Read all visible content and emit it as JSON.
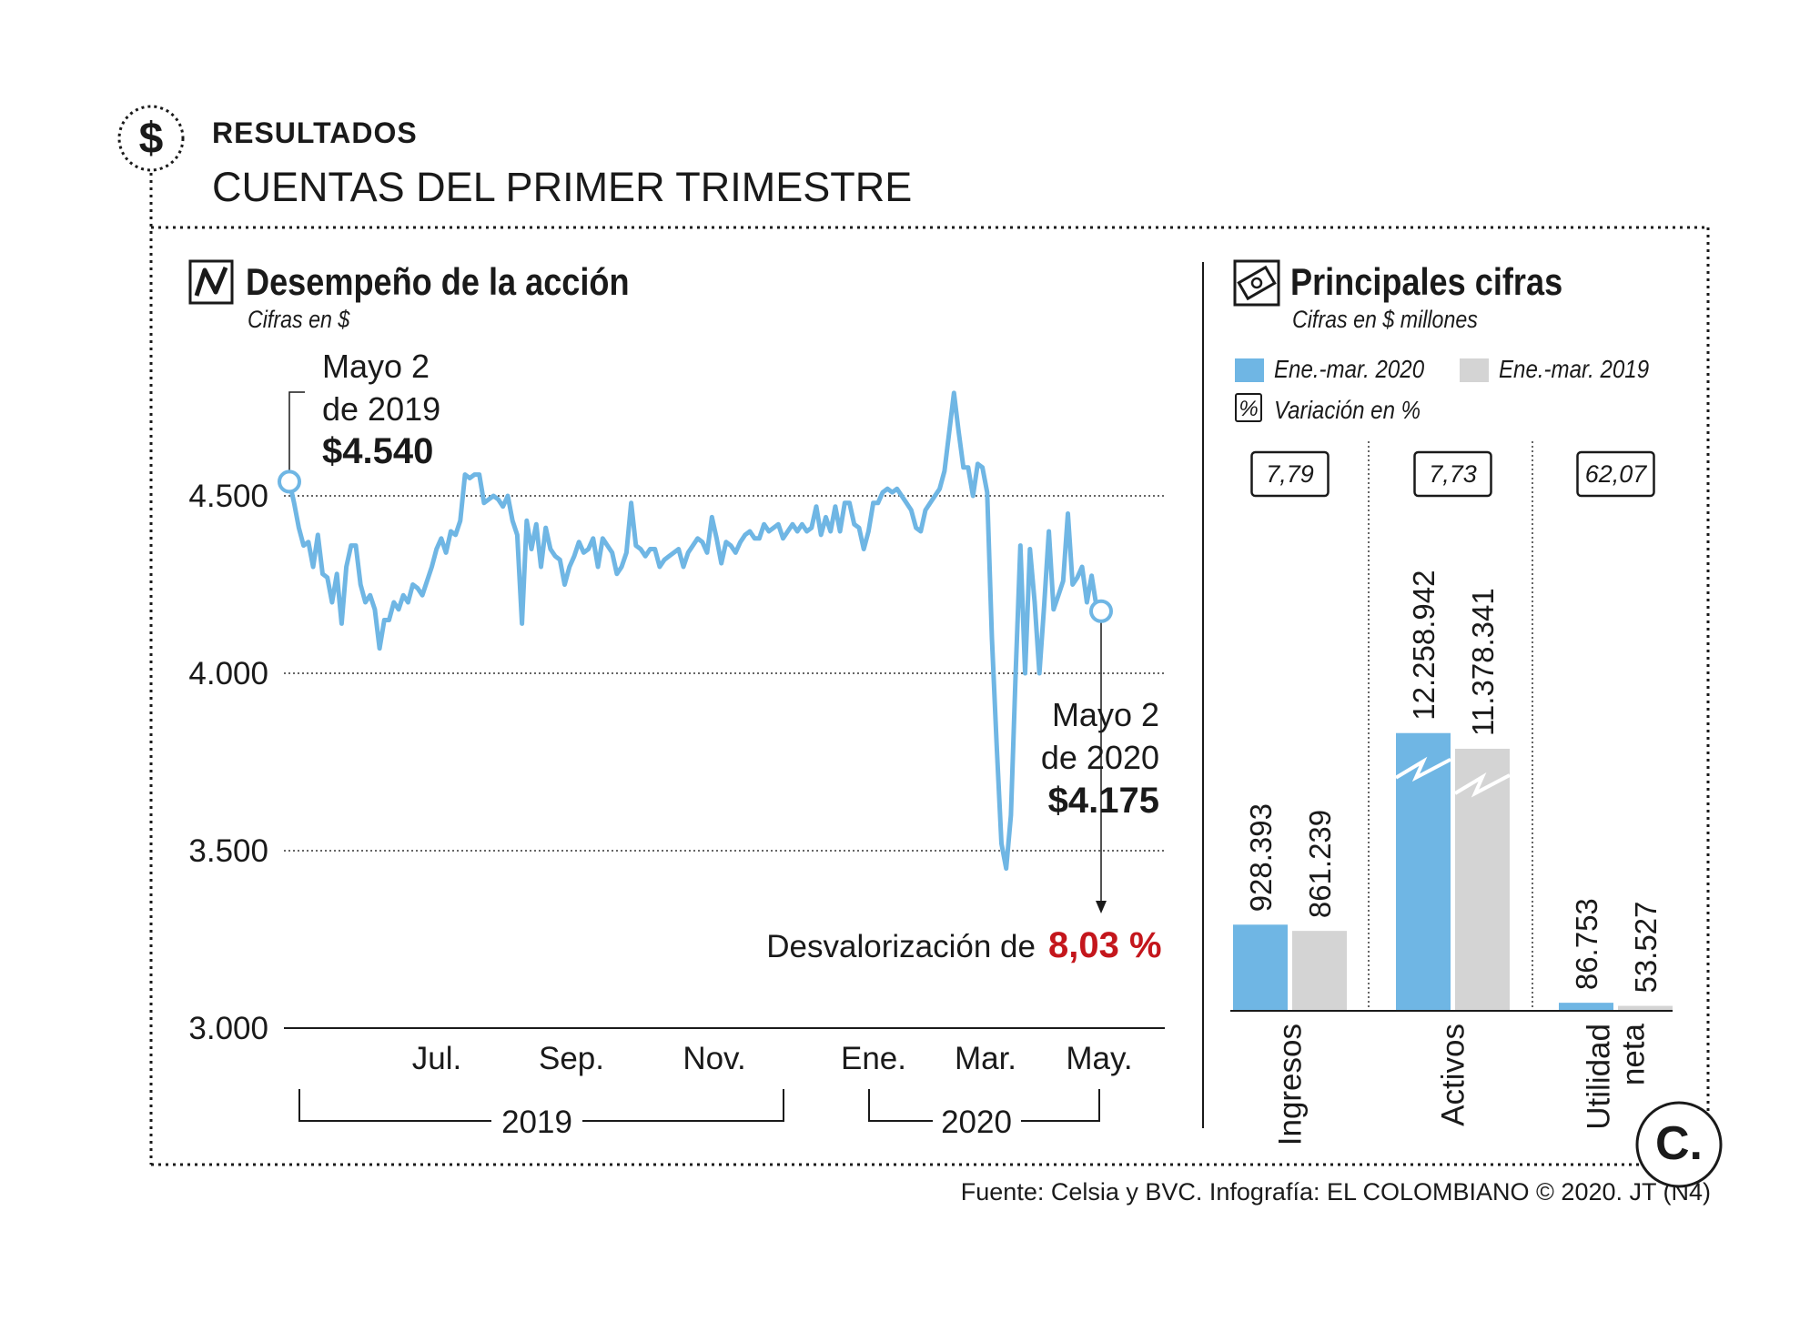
{
  "header": {
    "kicker": "RESULTADOS",
    "headline": "CUENTAS DEL PRIMER TRIMESTRE",
    "icon": "dollar-icon"
  },
  "colors": {
    "blue": "#6fb6e4",
    "gray": "#d4d4d4",
    "red": "#c4161c",
    "ink": "#1a1a1a"
  },
  "chart_data": [
    {
      "type": "line",
      "title": "Desempeño de la acción",
      "subtitle": "Cifras en $",
      "ylim": [
        3000,
        4800
      ],
      "yticks": [
        3000,
        3500,
        4000,
        4500
      ],
      "ytick_labels": [
        "3.000",
        "3.500",
        "4.000",
        "4.500"
      ],
      "xtick_labels": [
        "Jul.",
        "Sep.",
        "Nov.",
        "Ene.",
        "Mar.",
        "May."
      ],
      "year_labels": [
        "2019",
        "2020"
      ],
      "series": [
        {
          "values": [
            4540,
            4480,
            4410,
            4360,
            4370,
            4300,
            4390,
            4280,
            4270,
            4200,
            4280,
            4140,
            4300,
            4360,
            4360,
            4250,
            4200,
            4220,
            4180,
            4070,
            4150,
            4150,
            4200,
            4180,
            4220,
            4200,
            4250,
            4240,
            4220,
            4260,
            4300,
            4350,
            4380,
            4340,
            4400,
            4390,
            4430,
            4560,
            4550,
            4560,
            4560,
            4480,
            4490,
            4500,
            4490,
            4470,
            4500,
            4430,
            4390,
            4140,
            4430,
            4350,
            4420,
            4300,
            4410,
            4350,
            4330,
            4320,
            4250,
            4300,
            4330,
            4370,
            4340,
            4350,
            4380,
            4300,
            4380,
            4360,
            4340,
            4280,
            4300,
            4340,
            4480,
            4360,
            4350,
            4330,
            4350,
            4350,
            4300,
            4320,
            4330,
            4340,
            4350,
            4300,
            4340,
            4360,
            4380,
            4370,
            4340,
            4440,
            4380,
            4310,
            4370,
            4360,
            4340,
            4370,
            4390,
            4400,
            4380,
            4380,
            4420,
            4400,
            4410,
            4420,
            4380,
            4400,
            4420,
            4400,
            4420,
            4400,
            4410,
            4470,
            4390,
            4440,
            4400,
            4470,
            4400,
            4480,
            4480,
            4420,
            4410,
            4350,
            4400,
            4480,
            4480,
            4510,
            4520,
            4510,
            4520,
            4500,
            4480,
            4460,
            4410,
            4400,
            4460,
            4480,
            4500,
            4520,
            4570,
            4680,
            4790,
            4680,
            4580,
            4580,
            4500,
            4590,
            4580,
            4510,
            4100,
            3800,
            3520,
            3450,
            3600,
            4000,
            4360,
            4000,
            4350,
            4200,
            4000,
            4190,
            4400,
            4180,
            4220,
            4260,
            4450,
            4250,
            4270,
            4300,
            4200,
            4275,
            4190,
            4175
          ],
          "start_label": {
            "date": "Mayo 2",
            "year": "de 2019",
            "value": "$4.540"
          },
          "end_label": {
            "date": "Mayo 2",
            "year": "de 2020",
            "value": "$4.175"
          }
        }
      ],
      "annotation": {
        "text": "Desvalorización de",
        "value": "8,03 %"
      }
    },
    {
      "type": "bar",
      "title": "Principales cifras",
      "subtitle": "Cifras en $ millones",
      "categories": [
        "Ingresos",
        "Activos",
        "Utilidad neta"
      ],
      "category_lines": [
        [
          "Ingresos"
        ],
        [
          "Activos"
        ],
        [
          "Utilidad",
          "neta"
        ]
      ],
      "series": [
        {
          "name": "Ene.-mar. 2020",
          "values": [
            928393,
            12258942,
            86753
          ],
          "labels": [
            "928.393",
            "12.258.942",
            "86.753"
          ]
        },
        {
          "name": "Ene.-mar. 2019",
          "values": [
            861239,
            11378341,
            53527
          ],
          "labels": [
            "861.239",
            "11.378.341",
            "53.527"
          ]
        }
      ],
      "variation_legend": {
        "symbol": "%",
        "label": "Variación en %"
      },
      "variation": [
        "7,79",
        "7,73",
        "62,07"
      ]
    }
  ],
  "footer": {
    "source": "Fuente: Celsia y BVC. Infografía: EL COLOMBIANO © 2020. JT (N4)",
    "logo": "C."
  }
}
